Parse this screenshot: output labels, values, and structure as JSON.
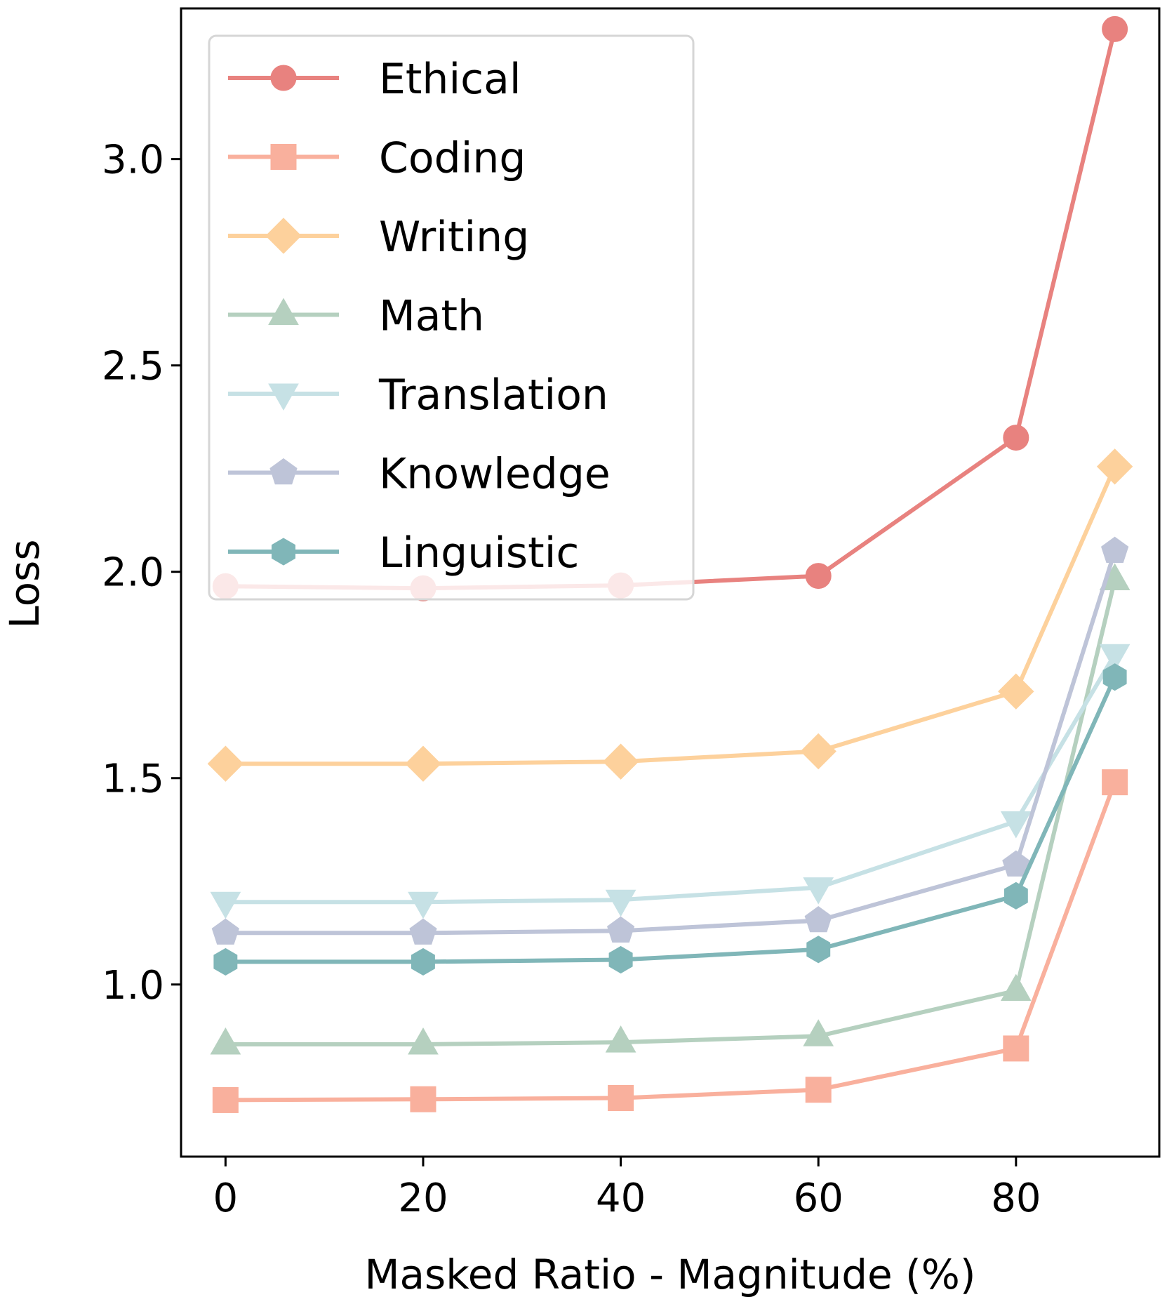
{
  "chart_data": {
    "type": "line",
    "title": "",
    "xlabel": "Masked Ratio - Magnitude (%)",
    "ylabel": "Loss",
    "x": [
      0,
      20,
      40,
      60,
      80,
      90
    ],
    "xticks": [
      0,
      20,
      40,
      60,
      80
    ],
    "xtick_labels": [
      "0",
      "20",
      "40",
      "60",
      "80"
    ],
    "yticks": [
      1.0,
      1.5,
      2.0,
      2.5,
      3.0
    ],
    "ytick_labels": [
      "1.0",
      "1.5",
      "2.0",
      "2.5",
      "3.0"
    ],
    "xlim": [
      -4.5,
      94.5
    ],
    "ylim": [
      0.583,
      3.365
    ],
    "grid": false,
    "legend_position": "top-left",
    "series": [
      {
        "name": "Ethical",
        "marker": "circle",
        "color": "#e8827f",
        "values": [
          1.965,
          1.96,
          1.967,
          1.99,
          2.325,
          3.315
        ]
      },
      {
        "name": "Coding",
        "marker": "square",
        "color": "#f9b09d",
        "values": [
          0.72,
          0.722,
          0.725,
          0.745,
          0.845,
          1.49
        ]
      },
      {
        "name": "Writing",
        "marker": "diamond",
        "color": "#fdd19c",
        "values": [
          1.535,
          1.535,
          1.54,
          1.565,
          1.71,
          2.255
        ]
      },
      {
        "name": "Math",
        "marker": "triangle-up",
        "color": "#b5d0bf",
        "values": [
          0.855,
          0.855,
          0.86,
          0.875,
          0.985,
          1.98
        ]
      },
      {
        "name": "Translation",
        "marker": "triangle-down",
        "color": "#c6e1e5",
        "values": [
          1.2,
          1.2,
          1.205,
          1.235,
          1.395,
          1.8
        ]
      },
      {
        "name": "Knowledge",
        "marker": "pentagon",
        "color": "#bec4d8",
        "values": [
          1.125,
          1.125,
          1.13,
          1.155,
          1.29,
          2.05
        ]
      },
      {
        "name": "Linguistic",
        "marker": "hexagon",
        "color": "#80b6b8",
        "values": [
          1.055,
          1.055,
          1.06,
          1.085,
          1.215,
          1.745
        ]
      }
    ]
  }
}
